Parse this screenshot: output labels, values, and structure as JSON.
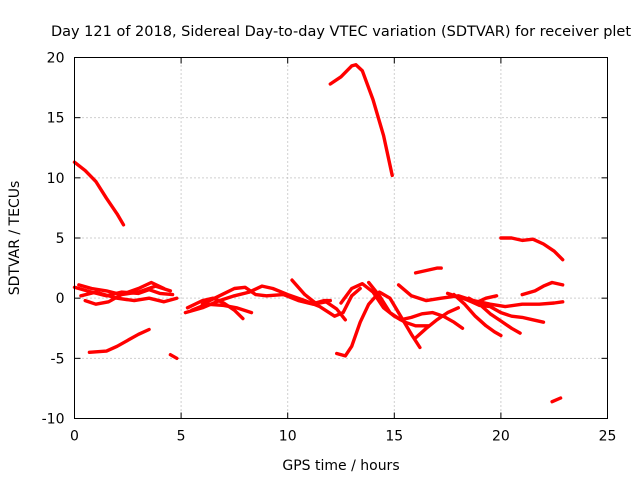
{
  "chart_data": {
    "type": "scatter",
    "title": "Day 121 of 2018, Sidereal Day-to-day VTEC variation (SDTVAR) for receiver plet",
    "xlabel": "GPS time / hours",
    "ylabel": "SDTVAR / TECUs",
    "xlim": [
      0,
      25
    ],
    "ylim": [
      -10,
      20
    ],
    "xticks": [
      0,
      5,
      10,
      15,
      20,
      25
    ],
    "yticks": [
      -10,
      -5,
      0,
      5,
      10,
      15,
      20
    ],
    "xtick_labels": [
      "0",
      "5",
      "10",
      "15",
      "20",
      "25"
    ],
    "ytick_labels": [
      "-10",
      "-5",
      "0",
      "5",
      "10",
      "15",
      "20"
    ],
    "grid": true,
    "color": "#ff0000",
    "series": [
      {
        "name": "trace-1",
        "points": [
          [
            0.0,
            11.3
          ],
          [
            0.5,
            10.6
          ],
          [
            1.0,
            9.7
          ],
          [
            1.5,
            8.3
          ],
          [
            2.0,
            7.0
          ],
          [
            2.3,
            6.1
          ]
        ]
      },
      {
        "name": "trace-2",
        "points": [
          [
            12.0,
            17.8
          ],
          [
            12.5,
            18.4
          ],
          [
            13.0,
            19.3
          ],
          [
            13.2,
            19.4
          ],
          [
            13.5,
            18.9
          ],
          [
            14.0,
            16.5
          ],
          [
            14.5,
            13.5
          ],
          [
            14.9,
            10.2
          ]
        ]
      },
      {
        "name": "trace-3",
        "points": [
          [
            0.7,
            -4.5
          ],
          [
            1.5,
            -4.4
          ],
          [
            2.0,
            -4.0
          ],
          [
            2.5,
            -3.5
          ],
          [
            3.0,
            -3.0
          ],
          [
            3.5,
            -2.6
          ]
        ]
      },
      {
        "name": "trace-4",
        "points": [
          [
            4.5,
            -4.7
          ],
          [
            4.8,
            -5.0
          ]
        ]
      },
      {
        "name": "trace-5",
        "points": [
          [
            0.0,
            0.9
          ],
          [
            0.8,
            0.5
          ],
          [
            1.5,
            0.2
          ],
          [
            2.2,
            0.5
          ],
          [
            3.0,
            0.4
          ],
          [
            3.5,
            0.7
          ],
          [
            4.0,
            0.4
          ],
          [
            4.6,
            0.3
          ]
        ]
      },
      {
        "name": "trace-6",
        "points": [
          [
            0.3,
            0.2
          ],
          [
            1.0,
            0.5
          ],
          [
            2.0,
            0.0
          ],
          [
            2.8,
            -0.2
          ],
          [
            3.5,
            0.0
          ],
          [
            4.2,
            -0.3
          ],
          [
            4.8,
            0.0
          ]
        ]
      },
      {
        "name": "trace-7",
        "points": [
          [
            0.5,
            -0.2
          ],
          [
            1.0,
            -0.5
          ],
          [
            1.6,
            -0.3
          ],
          [
            2.2,
            0.3
          ],
          [
            3.0,
            0.5
          ],
          [
            3.8,
            1.0
          ],
          [
            4.5,
            0.6
          ]
        ]
      },
      {
        "name": "trace-8",
        "points": [
          [
            0.2,
            1.1
          ],
          [
            0.8,
            0.8
          ],
          [
            1.5,
            0.6
          ],
          [
            2.2,
            0.3
          ],
          [
            3.0,
            0.8
          ],
          [
            3.6,
            1.3
          ],
          [
            4.2,
            0.8
          ]
        ]
      },
      {
        "name": "trace-9",
        "points": [
          [
            5.2,
            -1.2
          ],
          [
            6.0,
            -0.8
          ],
          [
            6.8,
            -0.2
          ],
          [
            7.5,
            0.2
          ],
          [
            8.2,
            0.5
          ],
          [
            8.8,
            1.0
          ],
          [
            9.3,
            0.8
          ],
          [
            10.0,
            0.3
          ],
          [
            10.8,
            -0.2
          ],
          [
            11.5,
            -0.7
          ],
          [
            12.2,
            -1.5
          ],
          [
            12.6,
            -1.2
          ],
          [
            13.0,
            0.2
          ],
          [
            13.4,
            0.8
          ]
        ]
      },
      {
        "name": "trace-10",
        "points": [
          [
            5.3,
            -0.8
          ],
          [
            6.0,
            -0.2
          ],
          [
            6.5,
            0.0
          ],
          [
            7.0,
            -0.4
          ],
          [
            7.5,
            -1.0
          ],
          [
            7.9,
            -1.7
          ]
        ]
      },
      {
        "name": "trace-11",
        "points": [
          [
            6.0,
            -0.5
          ],
          [
            6.8,
            0.2
          ],
          [
            7.5,
            0.8
          ],
          [
            8.0,
            0.9
          ],
          [
            8.5,
            0.3
          ],
          [
            9.0,
            0.2
          ],
          [
            9.8,
            0.3
          ],
          [
            10.5,
            -0.2
          ],
          [
            11.2,
            -0.5
          ],
          [
            11.8,
            -0.3
          ],
          [
            12.3,
            -0.9
          ],
          [
            12.7,
            -1.8
          ]
        ]
      },
      {
        "name": "trace-12",
        "points": [
          [
            5.5,
            -1.0
          ],
          [
            6.2,
            -0.5
          ],
          [
            7.0,
            -0.6
          ],
          [
            7.6,
            -0.8
          ],
          [
            8.3,
            -1.2
          ]
        ]
      },
      {
        "name": "trace-13",
        "points": [
          [
            10.2,
            1.5
          ],
          [
            10.8,
            0.3
          ],
          [
            11.3,
            -0.4
          ],
          [
            11.7,
            -0.2
          ],
          [
            12.0,
            -0.2
          ]
        ]
      },
      {
        "name": "trace-14",
        "points": [
          [
            12.3,
            -4.6
          ],
          [
            12.7,
            -4.8
          ],
          [
            13.0,
            -4.0
          ],
          [
            13.4,
            -2.0
          ],
          [
            13.8,
            -0.5
          ],
          [
            14.3,
            0.5
          ],
          [
            14.8,
            0.0
          ],
          [
            15.3,
            -1.5
          ],
          [
            15.8,
            -3.0
          ],
          [
            16.2,
            -4.1
          ]
        ]
      },
      {
        "name": "trace-15",
        "points": [
          [
            12.5,
            -0.4
          ],
          [
            13.0,
            0.8
          ],
          [
            13.5,
            1.2
          ],
          [
            14.0,
            0.5
          ],
          [
            14.5,
            -0.8
          ],
          [
            15.0,
            -1.5
          ],
          [
            15.5,
            -2.0
          ],
          [
            16.0,
            -2.3
          ],
          [
            16.6,
            -2.3
          ]
        ]
      },
      {
        "name": "trace-16",
        "points": [
          [
            13.8,
            1.3
          ],
          [
            14.3,
            0.2
          ],
          [
            14.8,
            -1.2
          ],
          [
            15.3,
            -1.8
          ],
          [
            15.8,
            -1.6
          ],
          [
            16.3,
            -1.3
          ],
          [
            16.8,
            -1.2
          ],
          [
            17.3,
            -1.5
          ],
          [
            17.8,
            -2.0
          ],
          [
            18.2,
            -2.5
          ]
        ]
      },
      {
        "name": "trace-17",
        "points": [
          [
            16.0,
            -3.3
          ],
          [
            16.5,
            -2.5
          ],
          [
            17.0,
            -1.8
          ],
          [
            17.5,
            -1.2
          ],
          [
            18.0,
            -0.8
          ]
        ]
      },
      {
        "name": "trace-18",
        "points": [
          [
            15.2,
            1.1
          ],
          [
            15.8,
            0.2
          ],
          [
            16.5,
            -0.2
          ],
          [
            17.2,
            0.0
          ],
          [
            18.0,
            0.2
          ],
          [
            18.7,
            -0.2
          ],
          [
            19.5,
            -0.5
          ],
          [
            20.2,
            -0.7
          ],
          [
            21.0,
            -0.5
          ],
          [
            21.8,
            -0.5
          ],
          [
            22.5,
            -0.4
          ],
          [
            22.9,
            -0.3
          ]
        ]
      },
      {
        "name": "trace-19",
        "points": [
          [
            16.0,
            2.1
          ],
          [
            16.5,
            2.3
          ],
          [
            17.0,
            2.5
          ],
          [
            17.2,
            2.5
          ]
        ]
      },
      {
        "name": "trace-20",
        "points": [
          [
            20.0,
            5.0
          ],
          [
            20.5,
            5.0
          ],
          [
            21.0,
            4.8
          ],
          [
            21.5,
            4.9
          ],
          [
            22.0,
            4.5
          ],
          [
            22.5,
            3.9
          ],
          [
            22.9,
            3.2
          ]
        ]
      },
      {
        "name": "trace-21",
        "points": [
          [
            21.0,
            0.3
          ],
          [
            21.6,
            0.6
          ],
          [
            22.0,
            1.0
          ],
          [
            22.4,
            1.3
          ],
          [
            22.9,
            1.1
          ]
        ]
      },
      {
        "name": "trace-22",
        "points": [
          [
            22.4,
            -8.6
          ],
          [
            22.8,
            -8.3
          ]
        ]
      },
      {
        "name": "trace-23",
        "points": [
          [
            17.8,
            0.3
          ],
          [
            18.3,
            -0.5
          ],
          [
            18.8,
            -1.5
          ],
          [
            19.3,
            -2.3
          ],
          [
            19.7,
            -2.8
          ],
          [
            20.0,
            -3.1
          ]
        ]
      },
      {
        "name": "trace-24",
        "points": [
          [
            18.5,
            0.0
          ],
          [
            19.0,
            -0.5
          ],
          [
            19.5,
            -1.3
          ],
          [
            20.0,
            -1.9
          ],
          [
            20.5,
            -2.5
          ],
          [
            20.9,
            -2.9
          ]
        ]
      },
      {
        "name": "trace-25",
        "points": [
          [
            17.5,
            0.4
          ],
          [
            18.2,
            0.0
          ],
          [
            18.8,
            -0.4
          ],
          [
            19.3,
            0.0
          ],
          [
            19.8,
            0.2
          ]
        ]
      },
      {
        "name": "trace-26",
        "points": [
          [
            18.5,
            -0.2
          ],
          [
            19.0,
            -0.6
          ],
          [
            19.5,
            -0.7
          ],
          [
            20.0,
            -1.2
          ],
          [
            20.5,
            -1.5
          ],
          [
            21.0,
            -1.6
          ],
          [
            21.5,
            -1.8
          ],
          [
            22.0,
            -2.0
          ]
        ]
      }
    ]
  }
}
